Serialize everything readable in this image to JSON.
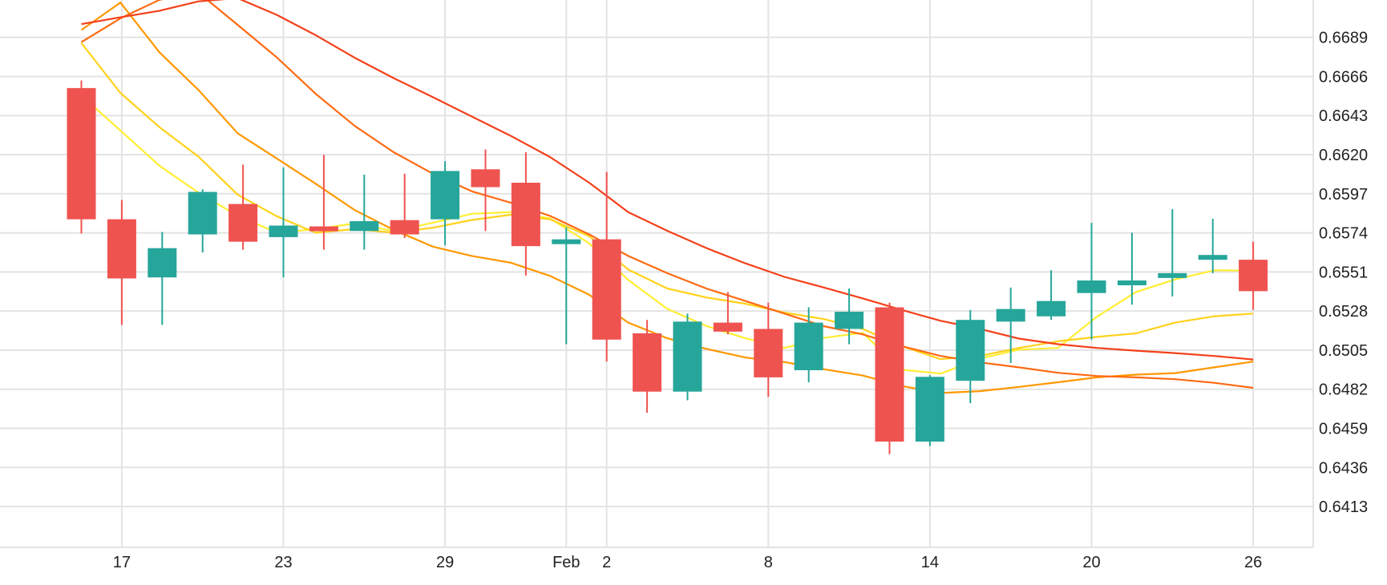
{
  "chart_data": {
    "type": "candlestick",
    "title": "",
    "xlabel": "",
    "ylabel": "",
    "y_ticks": [
      "0.6689",
      "0.6666",
      "0.6643",
      "0.6620",
      "0.6597",
      "0.6574",
      "0.6551",
      "0.6528",
      "0.6505",
      "0.6482",
      "0.6459",
      "0.6436",
      "0.6413"
    ],
    "ylim": [
      0.6389,
      0.6711
    ],
    "x_tick_labels": [
      {
        "index": 1,
        "label": "17"
      },
      {
        "index": 5,
        "label": "23"
      },
      {
        "index": 9,
        "label": "29"
      },
      {
        "index": 12,
        "label": "Feb"
      },
      {
        "index": 13,
        "label": "2"
      },
      {
        "index": 17,
        "label": "8"
      },
      {
        "index": 21,
        "label": "14"
      },
      {
        "index": 25,
        "label": "20"
      },
      {
        "index": 29,
        "label": "26"
      }
    ],
    "up_color": "#26a69a",
    "down_color": "#ef5350",
    "candles": [
      {
        "o": 0.66592,
        "h": 0.66636,
        "l": 0.65736,
        "c": 0.6582
      },
      {
        "o": 0.6582,
        "h": 0.65933,
        "l": 0.65199,
        "c": 0.65472
      },
      {
        "o": 0.65478,
        "h": 0.65745,
        "l": 0.65199,
        "c": 0.6565
      },
      {
        "o": 0.65731,
        "h": 0.65996,
        "l": 0.65625,
        "c": 0.65981
      },
      {
        "o": 0.6591,
        "h": 0.66141,
        "l": 0.65641,
        "c": 0.65688
      },
      {
        "o": 0.65715,
        "h": 0.66125,
        "l": 0.65478,
        "c": 0.65783
      },
      {
        "o": 0.65778,
        "h": 0.66199,
        "l": 0.65641,
        "c": 0.65751
      },
      {
        "o": 0.65751,
        "h": 0.66083,
        "l": 0.65641,
        "c": 0.65809
      },
      {
        "o": 0.65815,
        "h": 0.66088,
        "l": 0.6571,
        "c": 0.65731
      },
      {
        "o": 0.6582,
        "h": 0.66162,
        "l": 0.65667,
        "c": 0.66104
      },
      {
        "o": 0.66114,
        "h": 0.66231,
        "l": 0.65751,
        "c": 0.66009
      },
      {
        "o": 0.66035,
        "h": 0.66215,
        "l": 0.65489,
        "c": 0.65662
      },
      {
        "o": 0.6568,
        "h": 0.65772,
        "l": 0.65085,
        "c": 0.65702
      },
      {
        "o": 0.65702,
        "h": 0.66099,
        "l": 0.64983,
        "c": 0.65112
      },
      {
        "o": 0.65149,
        "h": 0.65228,
        "l": 0.64682,
        "c": 0.64806
      },
      {
        "o": 0.64806,
        "h": 0.65265,
        "l": 0.64755,
        "c": 0.65218
      },
      {
        "o": 0.65212,
        "h": 0.65392,
        "l": 0.65143,
        "c": 0.65159
      },
      {
        "o": 0.65175,
        "h": 0.65329,
        "l": 0.64775,
        "c": 0.6489
      },
      {
        "o": 0.64932,
        "h": 0.65302,
        "l": 0.64861,
        "c": 0.65212
      },
      {
        "o": 0.65175,
        "h": 0.65413,
        "l": 0.65085,
        "c": 0.65276
      },
      {
        "o": 0.65302,
        "h": 0.65329,
        "l": 0.64438,
        "c": 0.64512
      },
      {
        "o": 0.64512,
        "h": 0.64903,
        "l": 0.64486,
        "c": 0.64893
      },
      {
        "o": 0.6487,
        "h": 0.65286,
        "l": 0.64738,
        "c": 0.65228
      },
      {
        "o": 0.65218,
        "h": 0.65418,
        "l": 0.64975,
        "c": 0.65292
      },
      {
        "o": 0.65249,
        "h": 0.6552,
        "l": 0.65228,
        "c": 0.65339
      },
      {
        "o": 0.65386,
        "h": 0.65799,
        "l": 0.65112,
        "c": 0.6546
      },
      {
        "o": 0.65445,
        "h": 0.65741,
        "l": 0.65318,
        "c": 0.6546
      },
      {
        "o": 0.65487,
        "h": 0.6588,
        "l": 0.65366,
        "c": 0.65503
      },
      {
        "o": 0.65588,
        "h": 0.65823,
        "l": 0.65503,
        "c": 0.6561
      },
      {
        "o": 0.65582,
        "h": 0.65688,
        "l": 0.65287,
        "c": 0.65397
      }
    ],
    "series": [
      {
        "color": "#ffee33",
        "values": [
          0.66548,
          0.66342,
          0.66135,
          0.65976,
          0.65841,
          0.65741,
          0.65762,
          0.65795,
          0.65751,
          0.658,
          0.65852,
          0.65862,
          0.65826,
          0.65678,
          0.65463,
          0.65293,
          0.65192,
          0.6512,
          0.65063,
          0.65122,
          0.65152,
          0.64935,
          0.64912,
          0.65,
          0.65053,
          0.65063,
          0.65247,
          0.65392,
          0.65466,
          0.6552,
          0.65518
        ]
      },
      {
        "color": "#ffd21a",
        "values": [
          0.66857,
          0.66563,
          0.66362,
          0.66188,
          0.65965,
          0.65838,
          0.65741,
          0.65762,
          0.65741,
          0.6577,
          0.65816,
          0.65847,
          0.6582,
          0.6572,
          0.65524,
          0.65413,
          0.6536,
          0.65323,
          0.65271,
          0.65233,
          0.65175,
          0.65074,
          0.64997,
          0.65016,
          0.65063,
          0.65102,
          0.65128,
          0.65149,
          0.65212,
          0.65249,
          0.65265
        ]
      },
      {
        "color": "#ff9800",
        "values": [
          0.66933,
          0.67095,
          0.66802,
          0.6658,
          0.66326,
          0.66178,
          0.66029,
          0.65874,
          0.65757,
          0.65659,
          0.65604,
          0.65564,
          0.65487,
          0.65376,
          0.65212,
          0.6512,
          0.65058,
          0.65007,
          0.6498,
          0.64938,
          0.64901,
          0.64839,
          0.64798,
          0.64809,
          0.64834,
          0.64861,
          0.6489,
          0.64906,
          0.64915,
          0.64949,
          0.64983
        ]
      },
      {
        "color": "#ff6a13",
        "values": [
          0.66862,
          0.67002,
          0.67111,
          0.67153,
          0.66964,
          0.66773,
          0.66558,
          0.66369,
          0.66214,
          0.66088,
          0.65984,
          0.65917,
          0.6584,
          0.65731,
          0.65604,
          0.65503,
          0.65413,
          0.65339,
          0.65265,
          0.65191,
          0.65143,
          0.65074,
          0.65016,
          0.64978,
          0.64949,
          0.64917,
          0.64898,
          0.6489,
          0.64879,
          0.64858,
          0.64828
        ]
      },
      {
        "color": "#f4401a",
        "values": [
          0.66968,
          0.67008,
          0.67047,
          0.67102,
          0.67121,
          0.67023,
          0.66903,
          0.6677,
          0.6665,
          0.66538,
          0.66424,
          0.6631,
          0.66186,
          0.66035,
          0.65862,
          0.65752,
          0.65651,
          0.65561,
          0.65481,
          0.65419,
          0.65355,
          0.65287,
          0.65223,
          0.65175,
          0.65118,
          0.65085,
          0.65063,
          0.65047,
          0.65033,
          0.65016,
          0.64995
        ]
      }
    ]
  }
}
